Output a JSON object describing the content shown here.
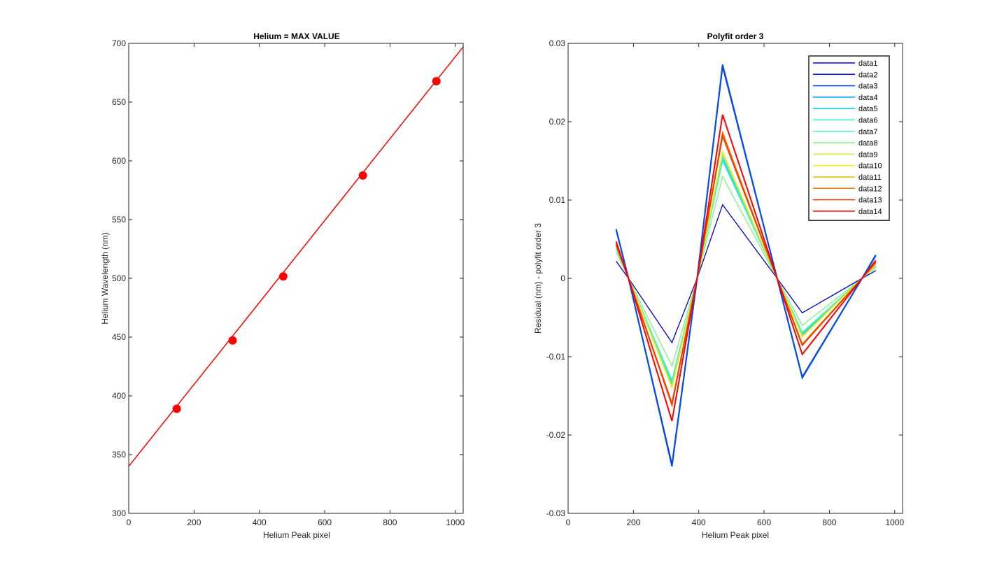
{
  "figure_background": "#ffffff",
  "chart_data": [
    {
      "type": "line",
      "title": "Helium = MAX VALUE",
      "xlabel": "Helium Peak pixel",
      "ylabel": "Helium Wavelength (nm)",
      "xlim": [
        0,
        1024
      ],
      "ylim": [
        300,
        700
      ],
      "xticks": [
        0,
        200,
        400,
        600,
        800,
        1000
      ],
      "yticks": [
        300,
        350,
        400,
        450,
        500,
        550,
        600,
        650,
        700
      ],
      "xtick_labels": [
        "0",
        "200",
        "400",
        "600",
        "800",
        "1000"
      ],
      "ytick_labels": [
        "300",
        "350",
        "400",
        "450",
        "500",
        "550",
        "600",
        "650",
        "700"
      ],
      "series": [
        {
          "name": "fit line",
          "style": "line",
          "color": "#ff0000",
          "x": [
            0,
            1024
          ],
          "y": [
            340,
            697
          ]
        },
        {
          "name": "peaks",
          "style": "markers",
          "color": "#ff0000",
          "x": [
            147,
            318,
            473,
            717,
            942
          ],
          "y": [
            389,
            447.2,
            501.6,
            587.6,
            667.8
          ]
        }
      ]
    },
    {
      "type": "line",
      "title": "Polyfit order 3",
      "xlabel": "Helium Peak pixel",
      "ylabel": "Residual (nm) - polyfit order 3",
      "xlim": [
        0,
        1024
      ],
      "ylim": [
        -0.03,
        0.03
      ],
      "xticks": [
        0,
        200,
        400,
        600,
        800,
        1000
      ],
      "yticks": [
        -0.03,
        -0.02,
        -0.01,
        0,
        0.01,
        0.02,
        0.03
      ],
      "xtick_labels": [
        "0",
        "200",
        "400",
        "600",
        "800",
        "1000"
      ],
      "ytick_labels": [
        "-0.03",
        "-0.02",
        "-0.01",
        "0",
        "0.01",
        "0.02",
        "0.03"
      ],
      "legend_location": "top-right",
      "x": [
        147,
        185,
        318,
        395,
        473,
        640,
        717,
        900,
        942
      ],
      "series": [
        {
          "name": "data1",
          "color": "#0000c8",
          "values": [
            0.0022,
            0,
            -0.0082,
            0,
            0.0094,
            0,
            -0.0044,
            0,
            0.001
          ]
        },
        {
          "name": "data2",
          "color": "#0014dc",
          "values": [
            0.0062,
            0,
            -0.0238,
            0,
            0.0271,
            0,
            -0.0126,
            0,
            0.0029
          ]
        },
        {
          "name": "data3",
          "color": "#0050f0",
          "values": [
            0.0063,
            0,
            -0.024,
            0,
            0.0273,
            0,
            -0.0127,
            0,
            0.003
          ]
        },
        {
          "name": "data4",
          "color": "#0096f0",
          "values": [
            0.004,
            0,
            -0.0135,
            0,
            0.0156,
            0,
            -0.0072,
            0,
            0.0016
          ]
        },
        {
          "name": "data5",
          "color": "#00c8f0",
          "values": [
            0.0039,
            0,
            -0.0131,
            0,
            0.0152,
            0,
            -0.007,
            0,
            0.0016
          ]
        },
        {
          "name": "data6",
          "color": "#30f0e0",
          "values": [
            0.0038,
            0,
            -0.013,
            0,
            0.015,
            0,
            -0.0069,
            0,
            0.0015
          ]
        },
        {
          "name": "data7",
          "color": "#50f0b0",
          "values": [
            0.0039,
            0,
            -0.0134,
            0,
            0.0155,
            0,
            -0.0071,
            0,
            0.0016
          ]
        },
        {
          "name": "data8",
          "color": "#80f080",
          "values": [
            0.0034,
            0,
            -0.0112,
            0,
            0.013,
            0,
            -0.006,
            0,
            0.0014
          ]
        },
        {
          "name": "data9",
          "color": "#c0f040",
          "values": [
            0.0042,
            0,
            -0.014,
            0,
            0.0162,
            0,
            -0.0075,
            0,
            0.0017
          ]
        },
        {
          "name": "data10",
          "color": "#f0f000",
          "values": [
            0.0041,
            0,
            -0.0138,
            0,
            0.016,
            0,
            -0.0074,
            0,
            0.0017
          ]
        },
        {
          "name": "data11",
          "color": "#f0b400",
          "values": [
            0.0046,
            0,
            -0.016,
            0,
            0.0184,
            0,
            -0.0084,
            0,
            0.0019
          ]
        },
        {
          "name": "data12",
          "color": "#f07800",
          "values": [
            0.0047,
            0,
            -0.0163,
            0,
            0.0187,
            0,
            -0.0086,
            0,
            0.002
          ]
        },
        {
          "name": "data13",
          "color": "#f03c00",
          "values": [
            0.0043,
            0,
            -0.016,
            0,
            0.0182,
            0,
            -0.0085,
            0,
            0.0021
          ]
        },
        {
          "name": "data14",
          "color": "#ff0000",
          "values": [
            0.0047,
            0,
            -0.0182,
            0,
            0.0209,
            0,
            -0.0097,
            0,
            0.0023
          ]
        }
      ]
    }
  ]
}
